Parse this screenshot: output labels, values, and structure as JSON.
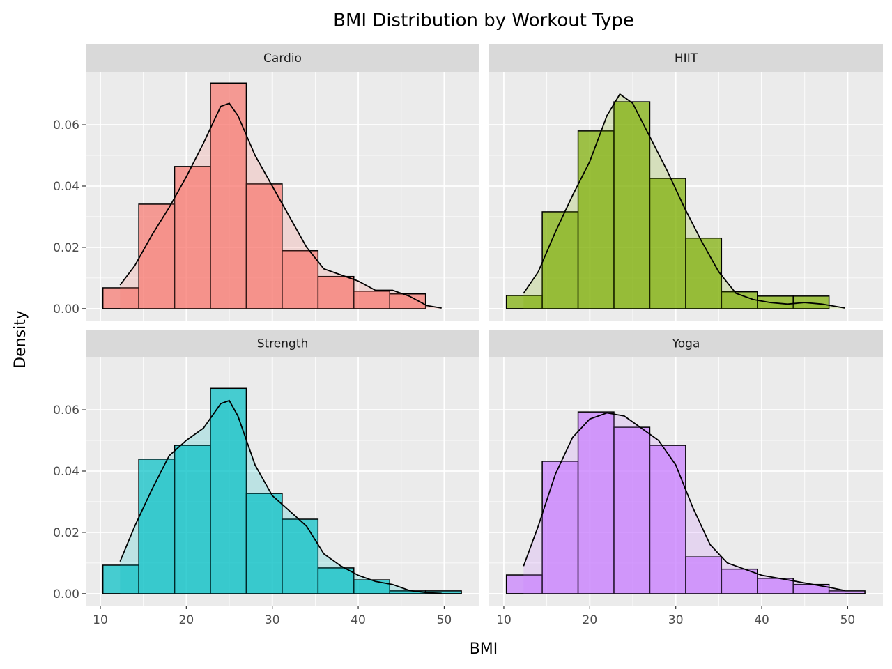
{
  "title": "BMI Distribution by Workout Type",
  "xlabel": "BMI",
  "ylabel": "Density",
  "xlim": [
    8.3,
    54.1
  ],
  "xticks": [
    10,
    20,
    30,
    40,
    50
  ],
  "ylim": [
    -0.0039,
    0.0773
  ],
  "yticks": [
    {
      "value": 0,
      "label": "0.00"
    },
    {
      "value": 0.02,
      "label": "0.02"
    },
    {
      "value": 0.04,
      "label": "0.04"
    },
    {
      "value": 0.06,
      "label": "0.06"
    }
  ],
  "chart_data": [
    {
      "type": "histogram",
      "title": "Cardio",
      "color": "#F8766D",
      "bins": [
        10.3,
        14.47,
        18.64,
        22.81,
        26.98,
        31.15,
        35.32,
        39.49,
        43.66,
        47.83,
        52.0
      ],
      "values": [
        0.0068,
        0.0341,
        0.0464,
        0.0736,
        0.0407,
        0.0189,
        0.0105,
        0.0057,
        0.0048,
        0
      ],
      "curve": {
        "x": [
          12.3,
          14,
          16,
          18,
          20,
          22,
          24,
          25,
          26,
          28,
          30,
          32,
          34,
          36,
          38,
          40,
          42,
          44,
          46,
          48,
          49.7
        ],
        "values": [
          0.0077,
          0.014,
          0.024,
          0.033,
          0.043,
          0.054,
          0.066,
          0.067,
          0.063,
          0.05,
          0.04,
          0.03,
          0.02,
          0.013,
          0.011,
          0.009,
          0.006,
          0.006,
          0.004,
          0.001,
          0.0002
        ]
      }
    },
    {
      "type": "histogram",
      "title": "HIIT",
      "color": "#7CAE00",
      "bins": [
        10.3,
        14.47,
        18.64,
        22.81,
        26.98,
        31.15,
        35.32,
        39.49,
        43.66,
        47.83,
        52.0
      ],
      "values": [
        0.0043,
        0.0316,
        0.058,
        0.0675,
        0.0425,
        0.023,
        0.0055,
        0.0041,
        0.0041,
        0
      ],
      "curve": {
        "x": [
          12.3,
          14,
          16,
          18,
          20,
          22,
          23.5,
          25,
          27,
          29,
          31,
          33,
          35,
          37,
          39,
          41,
          43,
          45,
          47,
          49.7
        ],
        "values": [
          0.005,
          0.012,
          0.025,
          0.037,
          0.048,
          0.063,
          0.07,
          0.067,
          0.056,
          0.045,
          0.033,
          0.022,
          0.012,
          0.005,
          0.003,
          0.002,
          0.0015,
          0.002,
          0.0015,
          0.0002
        ]
      }
    },
    {
      "type": "histogram",
      "title": "Strength",
      "color": "#00BFC4",
      "bins": [
        10.3,
        14.47,
        18.64,
        22.81,
        26.98,
        31.15,
        35.32,
        39.49,
        43.66,
        47.83,
        52.0
      ],
      "values": [
        0.0093,
        0.0439,
        0.0484,
        0.067,
        0.0327,
        0.0243,
        0.0084,
        0.0045,
        0.0009,
        0.0009
      ],
      "curve": {
        "x": [
          12.3,
          14,
          16,
          18,
          20,
          22,
          24,
          25,
          26,
          28,
          30,
          32,
          34,
          36,
          38,
          40,
          42,
          44,
          46,
          48,
          49.7
        ],
        "values": [
          0.0105,
          0.022,
          0.034,
          0.045,
          0.05,
          0.054,
          0.062,
          0.063,
          0.058,
          0.042,
          0.032,
          0.027,
          0.022,
          0.013,
          0.009,
          0.006,
          0.004,
          0.003,
          0.001,
          0.0003,
          0.0001
        ]
      }
    },
    {
      "type": "histogram",
      "title": "Yoga",
      "color": "#C77CFF",
      "bins": [
        10.3,
        14.47,
        18.64,
        22.81,
        26.98,
        31.15,
        35.32,
        39.49,
        43.66,
        47.83,
        52.0
      ],
      "values": [
        0.0061,
        0.0432,
        0.0593,
        0.0543,
        0.0484,
        0.012,
        0.008,
        0.005,
        0.003,
        0.0009
      ],
      "curve": {
        "x": [
          12.3,
          14,
          16,
          18,
          20,
          22,
          24,
          26,
          28,
          30,
          32,
          34,
          36,
          38,
          40,
          42,
          44,
          46,
          48,
          49.7
        ],
        "values": [
          0.009,
          0.022,
          0.039,
          0.051,
          0.057,
          0.059,
          0.058,
          0.054,
          0.05,
          0.042,
          0.028,
          0.016,
          0.01,
          0.008,
          0.006,
          0.005,
          0.004,
          0.003,
          0.002,
          0.001
        ]
      }
    }
  ]
}
